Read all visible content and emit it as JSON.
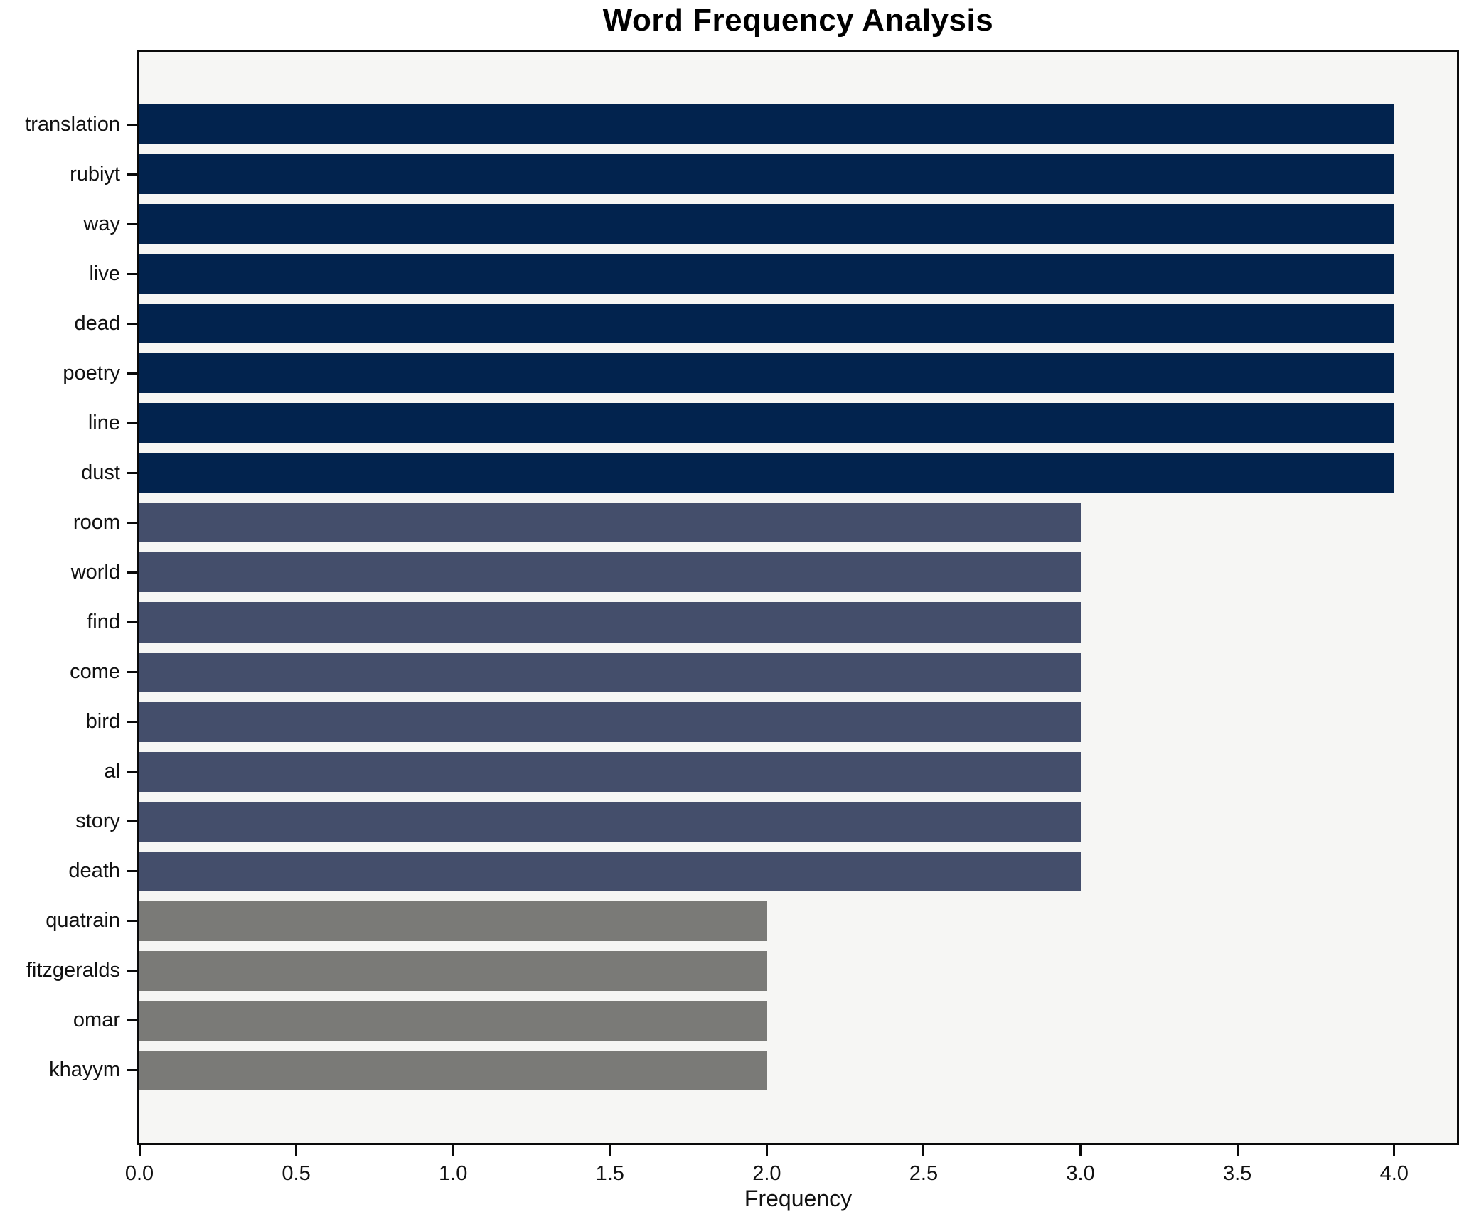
{
  "chart_data": {
    "type": "bar",
    "orientation": "horizontal",
    "title": "Word Frequency Analysis",
    "xlabel": "Frequency",
    "ylabel": "",
    "categories": [
      "translation",
      "rubiyt",
      "way",
      "live",
      "dead",
      "poetry",
      "line",
      "dust",
      "room",
      "world",
      "find",
      "come",
      "bird",
      "al",
      "story",
      "death",
      "quatrain",
      "fitzgeralds",
      "omar",
      "khayym"
    ],
    "values": [
      4,
      4,
      4,
      4,
      4,
      4,
      4,
      4,
      3,
      3,
      3,
      3,
      3,
      3,
      3,
      3,
      2,
      2,
      2,
      2
    ],
    "bar_colors": [
      "#02234e",
      "#02234e",
      "#02234e",
      "#02234e",
      "#02234e",
      "#02234e",
      "#02234e",
      "#02234e",
      "#444e6b",
      "#444e6b",
      "#444e6b",
      "#444e6b",
      "#444e6b",
      "#444e6b",
      "#444e6b",
      "#444e6b",
      "#7a7a77",
      "#7a7a77",
      "#7a7a77",
      "#7a7a77"
    ],
    "color_by_value": {
      "4": "#02234e",
      "3": "#444e6b",
      "2": "#7a7a77"
    },
    "xlim": [
      0,
      4.2
    ],
    "xticks": [
      0.0,
      0.5,
      1.0,
      1.5,
      2.0,
      2.5,
      3.0,
      3.5,
      4.0
    ],
    "xtick_labels": [
      "0.0",
      "0.5",
      "1.0",
      "1.5",
      "2.0",
      "2.5",
      "3.0",
      "3.5",
      "4.0"
    ],
    "grid": false,
    "legend": false,
    "plot_background": "#f6f6f4",
    "figure_background": "#ffffff"
  }
}
